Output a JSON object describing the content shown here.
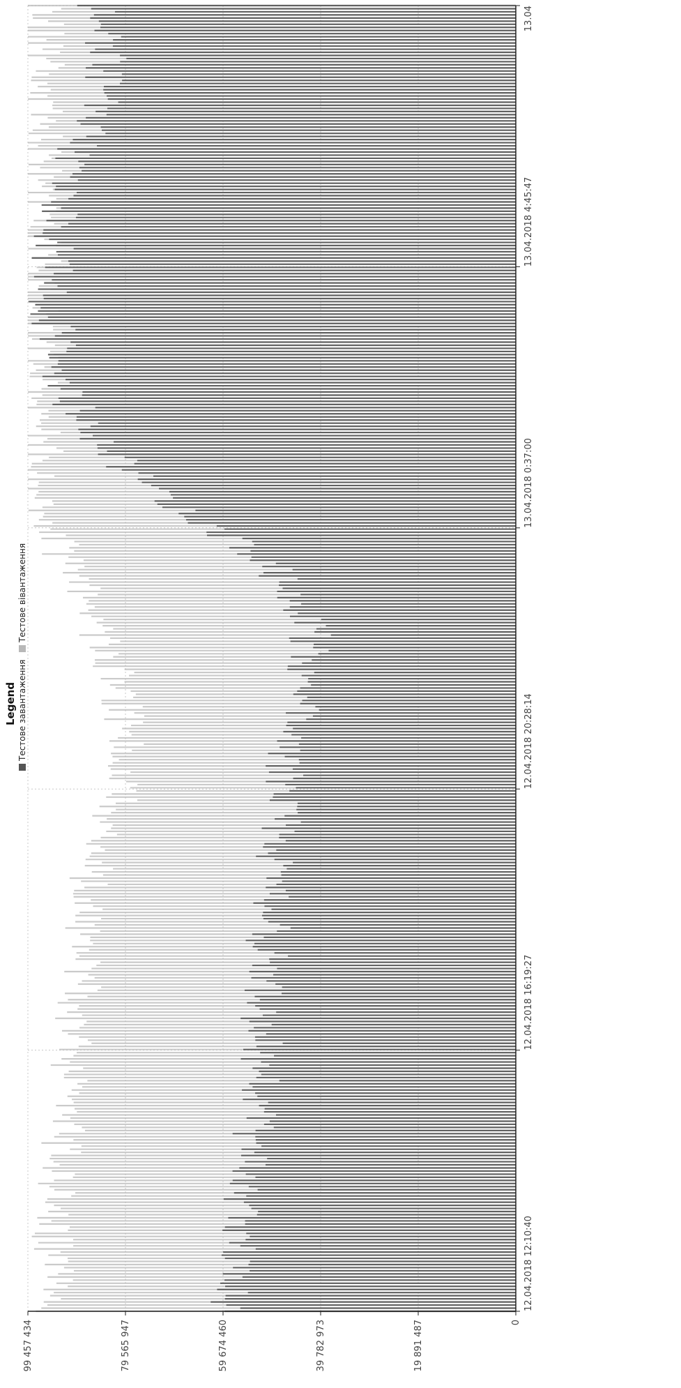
{
  "chart_data": {
    "type": "area",
    "title": "",
    "orientation": "rotated-90",
    "legend": {
      "title": "Legend",
      "placement": "left-center",
      "entries": [
        {
          "name": "Тестове завантаження",
          "color": "#555555"
        },
        {
          "name": "Тестове вівантаження",
          "color": "#b8b8b8"
        }
      ]
    },
    "value_axis": {
      "ticks": [
        "99 457 434",
        "79 565 947",
        "59 674 460",
        "39 782 973",
        "19 891 487",
        "0"
      ],
      "range": [
        0,
        99457434
      ]
    },
    "time_axis": {
      "ticks": [
        "12.04.2018 12:10:40",
        "12.04.2018 16:19:27",
        "12.04.2018 20:28:14",
        "13.04.2018 0:37:00",
        "13.04.2018 4:45:47",
        "13.04"
      ],
      "range": [
        "2018-04-12 12:10:40",
        "2018-04-13 08:54:34"
      ]
    },
    "grid": true,
    "series": [
      {
        "name": "Тестове завантаження",
        "x": [
          "2018-04-12 12:10",
          "2018-04-12 13:10",
          "2018-04-12 14:10",
          "2018-04-12 15:10",
          "2018-04-12 16:10",
          "2018-04-12 17:10",
          "2018-04-12 18:10",
          "2018-04-12 19:10",
          "2018-04-12 20:10",
          "2018-04-12 21:10",
          "2018-04-12 22:10",
          "2018-04-12 23:10",
          "2018-04-13 00:10",
          "2018-04-13 01:10",
          "2018-04-13 02:10",
          "2018-04-13 03:10",
          "2018-04-13 04:10",
          "2018-04-13 05:10",
          "2018-04-13 06:10",
          "2018-04-13 07:10",
          "2018-04-13 08:10",
          "2018-04-13 08:50"
        ],
        "values": [
          58000000,
          56500000,
          55000000,
          53500000,
          52000000,
          51500000,
          50500000,
          49000000,
          48000000,
          46000000,
          43000000,
          41500000,
          52000000,
          74000000,
          88000000,
          93000000,
          95000000,
          94000000,
          93000000,
          86000000,
          83000000,
          86000000
        ]
      },
      {
        "name": "Тестове вівантаження",
        "x": [
          "2018-04-12 12:10",
          "2018-04-12 13:10",
          "2018-04-12 14:10",
          "2018-04-12 15:10",
          "2018-04-12 16:10",
          "2018-04-12 17:10",
          "2018-04-12 18:10",
          "2018-04-12 19:10",
          "2018-04-12 20:10",
          "2018-04-12 21:10",
          "2018-04-12 22:10",
          "2018-04-12 23:10",
          "2018-04-13 00:10",
          "2018-04-13 01:10",
          "2018-04-13 02:10",
          "2018-04-13 03:10",
          "2018-04-13 04:10",
          "2018-04-13 05:10",
          "2018-04-13 06:10",
          "2018-04-13 07:10",
          "2018-04-13 08:10",
          "2018-04-13 08:50"
        ],
        "values": [
          94000000,
          94500000,
          93500000,
          92000000,
          90500000,
          89000000,
          87500000,
          86500000,
          82000000,
          79000000,
          81000000,
          86000000,
          92000000,
          96000000,
          97000000,
          97500000,
          97500000,
          97000000,
          97000000,
          96500000,
          96000000,
          96500000
        ]
      }
    ]
  }
}
